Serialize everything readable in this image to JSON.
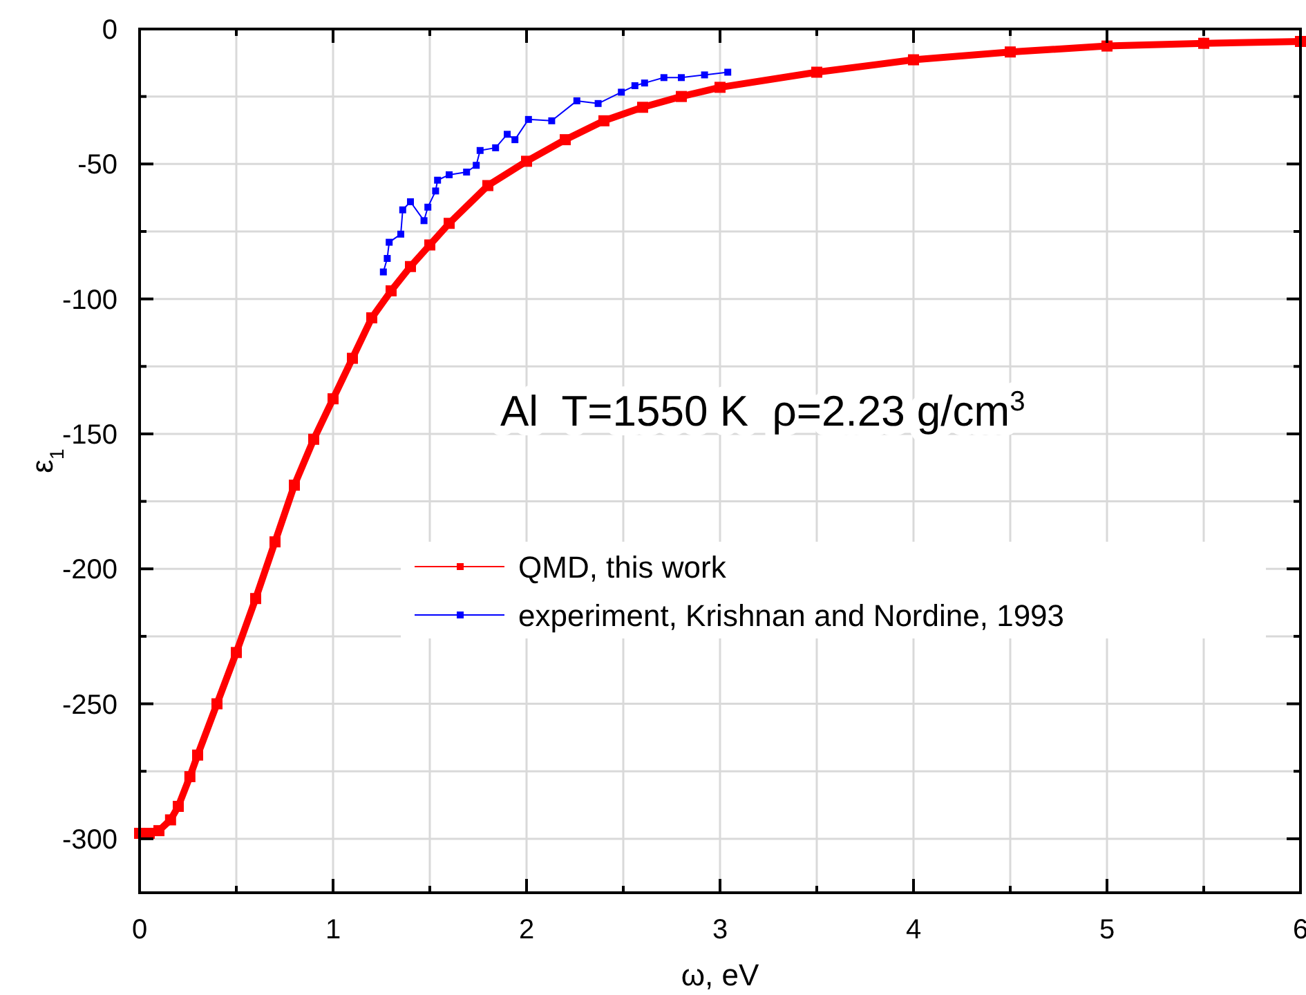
{
  "chart_data": {
    "type": "line",
    "xlabel": "ω, eV",
    "ylabel": "ε$_{1}$",
    "annotations": [
      "Al  T=1550 K  ρ=2.23 g/cm$^{3}$"
    ],
    "xlim": [
      0,
      6
    ],
    "xticks": [
      0,
      {
        "value": 0.5,
        "label": null
      },
      1,
      {
        "value": 1.5,
        "label": null
      },
      2,
      {
        "value": 2.5,
        "label": null
      },
      3,
      {
        "value": 3.5,
        "label": null
      },
      4,
      {
        "value": 4.5,
        "label": null
      },
      5,
      {
        "value": 5.5,
        "label": null
      },
      6
    ],
    "ylim": [
      -320,
      0
    ],
    "yticks": [
      0,
      {
        "value": -25,
        "label": null
      },
      -50,
      {
        "value": -75,
        "label": null
      },
      -100,
      {
        "value": -125,
        "label": null
      },
      -150,
      {
        "value": -175,
        "label": null
      },
      -200,
      {
        "value": -225,
        "label": null
      },
      -250,
      {
        "value": -275,
        "label": null
      },
      -300
    ],
    "grid": true,
    "legend": "center",
    "marker": "square",
    "line_style": "solid",
    "series": [
      {
        "name": "QMD, this work",
        "color": "#ff0000",
        "x": [
          0,
          0.05,
          0.1,
          0.16,
          0.2,
          0.26,
          0.3,
          0.4,
          0.5,
          0.6,
          0.7,
          0.8,
          0.9,
          1.0,
          1.1,
          1.2,
          1.3,
          1.4,
          1.5,
          1.6,
          1.8,
          2.0,
          2.2,
          2.4,
          2.6,
          2.8,
          3.0,
          3.5,
          4.0,
          4.5,
          5.0,
          5.5,
          6.0
        ],
        "values": [
          -298,
          -298,
          -297,
          -293,
          -288,
          -277,
          -269,
          -250,
          -231,
          -211,
          -190,
          -169,
          -152,
          -137,
          -122,
          -107,
          -97,
          -88,
          -80,
          -72,
          -58,
          -49,
          -41,
          -34,
          -29,
          -25,
          -21.6,
          -16,
          -11.4,
          -8.5,
          -6.3,
          -5.3,
          -4.6
        ]
      },
      {
        "name": "experiment, Krishnan and Nordine, 1993",
        "color": "#0000ff",
        "x": [
          1.26,
          1.28,
          1.29,
          1.35,
          1.36,
          1.4,
          1.47,
          1.49,
          1.53,
          1.54,
          1.6,
          1.69,
          1.74,
          1.76,
          1.84,
          1.9,
          1.94,
          2.01,
          2.13,
          2.26,
          2.37,
          2.49,
          2.56,
          2.61,
          2.71,
          2.8,
          2.92,
          3.04
        ],
        "values": [
          -90,
          -85,
          -79,
          -76,
          -67,
          -64,
          -71,
          -66,
          -60,
          -56,
          -54,
          -53,
          -50.5,
          -45,
          -44,
          -39,
          -41,
          -33.5,
          -34,
          -26.6,
          -27.6,
          -23.4,
          -21,
          -20,
          -18,
          -18,
          -17,
          -16
        ]
      }
    ]
  }
}
